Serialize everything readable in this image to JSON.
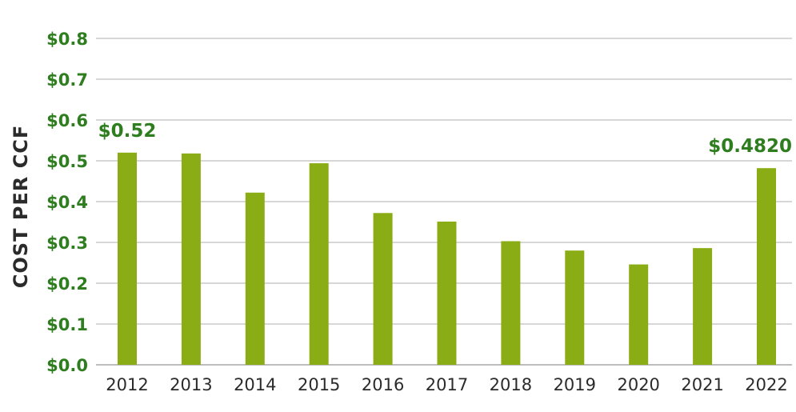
{
  "chart_data": {
    "type": "bar",
    "ylabel": "COST PER CCF",
    "xlabel": "",
    "title": "",
    "categories": [
      "2012",
      "2013",
      "2014",
      "2015",
      "2016",
      "2017",
      "2018",
      "2019",
      "2020",
      "2021",
      "2022"
    ],
    "values": [
      0.52,
      0.518,
      0.422,
      0.494,
      0.372,
      0.351,
      0.303,
      0.28,
      0.246,
      0.286,
      0.482
    ],
    "ylim": [
      0,
      0.8
    ],
    "yticks": [
      "$0.0",
      "$0.1",
      "$0.2",
      "$0.3",
      "$0.4",
      "$0.5",
      "$0.6",
      "$0.7",
      "$0.8"
    ],
    "annotations": [
      {
        "category": "2012",
        "text": "$0.52"
      },
      {
        "category": "2022",
        "text": "$0.4820"
      }
    ],
    "grid": true,
    "legend": "none",
    "colors": {
      "bar": "#8aad16",
      "tick_text": "#2e7d1f",
      "axis_label": "#2b2b2b",
      "grid": "#d7d7d7"
    }
  }
}
